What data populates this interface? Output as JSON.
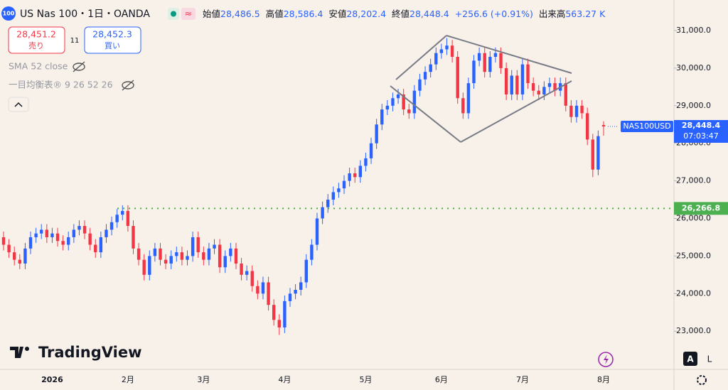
{
  "header": {
    "symbol": "US Nas 100・1日・OANDA",
    "badge": "100",
    "open_label": "始値",
    "open": "28,486.5",
    "high_label": "高値",
    "high": "28,586.4",
    "low_label": "安値",
    "low": "28,202.4",
    "close_label": "終値",
    "close": "28,448.4",
    "change": "+256.6 (+0.91%)",
    "volume_label": "出来高",
    "volume": "563.27 K",
    "sell_price": "28,451.2",
    "sell": "売り",
    "spread": "11",
    "buy_price": "28,452.3",
    "buy": "買い",
    "indicator1": "SMA 52 close",
    "indicator2": "一目均衡表® 9 26 52 26",
    "brand": "TradingView",
    "btn_a": "A",
    "btn_l": "L"
  },
  "chart_data": {
    "type": "candlestick",
    "up_color": "#2962ff",
    "down_color": "#f23645",
    "categories": [
      null,
      null,
      null,
      null,
      null,
      null,
      null,
      null,
      null,
      "2026",
      null,
      null,
      null,
      null,
      null,
      null,
      null,
      null,
      null,
      null,
      null,
      null,
      null,
      "2月",
      null,
      null,
      null,
      null,
      null,
      null,
      null,
      null,
      null,
      null,
      null,
      null,
      null,
      "3月",
      null,
      null,
      null,
      null,
      null,
      null,
      null,
      null,
      null,
      null,
      null,
      null,
      null,
      null,
      "4月",
      null,
      null,
      null,
      null,
      null,
      null,
      null,
      null,
      null,
      null,
      null,
      null,
      null,
      null,
      "5月",
      null,
      null,
      null,
      null,
      null,
      null,
      null,
      null,
      null,
      null,
      null,
      null,
      null,
      "6月",
      null,
      null,
      null,
      null,
      null,
      null,
      null,
      null,
      null,
      null,
      null,
      null,
      null,
      null,
      "7月",
      null,
      null,
      null,
      null,
      null,
      null,
      null,
      null,
      null,
      null,
      null,
      null,
      null,
      null,
      "8月"
    ],
    "open": [
      25500,
      25300,
      25100,
      24900,
      24800,
      25200,
      25500,
      25600,
      25700,
      25500,
      25600,
      25400,
      25300,
      25500,
      25700,
      25800,
      25600,
      25300,
      25100,
      25500,
      25700,
      25900,
      26100,
      26200,
      25800,
      25200,
      24900,
      24500,
      25000,
      25200,
      24900,
      24800,
      25000,
      25100,
      24900,
      25000,
      25500,
      25100,
      24900,
      25200,
      25300,
      24700,
      25000,
      25200,
      24800,
      24500,
      24600,
      24200,
      24000,
      24300,
      23700,
      23300,
      23100,
      23800,
      24000,
      24100,
      24300,
      24900,
      25300,
      26000,
      26300,
      26500,
      26700,
      26800,
      27000,
      27200,
      27100,
      27400,
      27600,
      28000,
      28500,
      28900,
      29000,
      29200,
      29300,
      28900,
      28800,
      29400,
      29700,
      29900,
      30100,
      30400,
      30500,
      30600,
      30300,
      29200,
      28800,
      29600,
      30200,
      30400,
      29900,
      30300,
      30400,
      30000,
      29300,
      29800,
      29300,
      30100,
      29600,
      29400,
      29300,
      29500,
      29600,
      29400,
      29600,
      29000,
      28700,
      29000,
      28800,
      28100,
      27300,
      28486.5
    ],
    "high": [
      25650,
      25450,
      25250,
      25050,
      25350,
      25650,
      25750,
      25850,
      25850,
      25750,
      25750,
      25550,
      25650,
      25850,
      25950,
      25950,
      25750,
      25450,
      25650,
      25850,
      26050,
      26250,
      26350,
      26350,
      25950,
      25350,
      25050,
      25150,
      25350,
      25350,
      25050,
      25150,
      25250,
      25250,
      25150,
      25650,
      25650,
      25250,
      25350,
      25450,
      25450,
      25150,
      25350,
      25350,
      24950,
      24750,
      24750,
      24350,
      24450,
      24450,
      23850,
      23450,
      23950,
      24150,
      24250,
      24450,
      25050,
      25450,
      26150,
      26450,
      26650,
      26850,
      26950,
      27150,
      27350,
      27350,
      27550,
      27750,
      28150,
      28650,
      29050,
      29150,
      29350,
      29450,
      29450,
      29050,
      29550,
      29850,
      30050,
      30250,
      30550,
      30650,
      30800,
      30750,
      30450,
      29350,
      29750,
      30350,
      30550,
      30550,
      30450,
      30550,
      30550,
      30150,
      29950,
      29950,
      30250,
      30250,
      29750,
      29550,
      29650,
      29750,
      29750,
      29750,
      29750,
      29150,
      29150,
      29150,
      28950,
      28250,
      28340,
      28586.4
    ],
    "low": [
      25150,
      24950,
      24750,
      24650,
      24650,
      25050,
      25350,
      25450,
      25350,
      25350,
      25250,
      25150,
      25150,
      25350,
      25550,
      25450,
      25150,
      24950,
      24950,
      25350,
      25550,
      25750,
      25950,
      25650,
      25050,
      24750,
      24350,
      24350,
      24850,
      24750,
      24650,
      24650,
      24850,
      24750,
      24750,
      24850,
      24950,
      24750,
      24750,
      25050,
      24550,
      24550,
      24850,
      24650,
      24350,
      24350,
      24050,
      23850,
      23850,
      23550,
      23150,
      22900,
      22950,
      23650,
      23850,
      23950,
      24150,
      24750,
      25150,
      25850,
      26150,
      26350,
      26550,
      26650,
      26850,
      26950,
      26950,
      27250,
      27450,
      27850,
      28350,
      28750,
      28850,
      29050,
      28750,
      28650,
      28650,
      29250,
      29550,
      29750,
      29950,
      30250,
      30350,
      30150,
      29050,
      28650,
      28650,
      29450,
      30050,
      29750,
      29750,
      30150,
      29850,
      29150,
      29150,
      29150,
      29150,
      29450,
      29250,
      29150,
      29150,
      29350,
      29250,
      29250,
      28850,
      28550,
      28550,
      28650,
      27950,
      27100,
      27150,
      28202.4
    ],
    "close": [
      25300,
      25100,
      24900,
      24800,
      25200,
      25500,
      25600,
      25700,
      25500,
      25600,
      25400,
      25300,
      25500,
      25700,
      25800,
      25600,
      25300,
      25100,
      25500,
      25700,
      25900,
      26100,
      26200,
      25800,
      25200,
      24900,
      24500,
      25000,
      25200,
      24900,
      24800,
      25000,
      25100,
      24900,
      25000,
      25500,
      25100,
      24900,
      25200,
      25300,
      24700,
      25000,
      25200,
      24800,
      24500,
      24600,
      24200,
      24000,
      24300,
      23700,
      23300,
      23100,
      23800,
      24000,
      24100,
      24300,
      24900,
      25300,
      26000,
      26300,
      26500,
      26700,
      26800,
      27000,
      27200,
      27100,
      27400,
      27600,
      28000,
      28500,
      28900,
      29000,
      29200,
      29300,
      28900,
      28800,
      29400,
      29700,
      29900,
      30100,
      30400,
      30500,
      30600,
      30300,
      29200,
      28800,
      29600,
      30200,
      30400,
      29900,
      30300,
      30400,
      30000,
      29300,
      29800,
      29300,
      30100,
      29600,
      29400,
      29300,
      29500,
      29600,
      29400,
      29600,
      29000,
      28700,
      29000,
      28800,
      28100,
      27300,
      28190,
      28448.4
    ],
    "ylim": [
      21983,
      31813
    ],
    "yticks": [
      {
        "value": 23000,
        "label": "23,000.0"
      },
      {
        "value": 24000,
        "label": "24,000.0"
      },
      {
        "value": 25000,
        "label": "25,000.0"
      },
      {
        "value": 26000,
        "label": "26,000.0"
      },
      {
        "value": 27000,
        "label": "27,000.0"
      },
      {
        "value": 28000,
        "label": "28,000.0"
      },
      {
        "value": 29000,
        "label": "29,000.0"
      },
      {
        "value": 30000,
        "label": "30,000.0"
      },
      {
        "value": 31000,
        "label": "31,000.0"
      }
    ],
    "hline": {
      "value": 26266.8,
      "label": "26,266.8",
      "color": "#4caf50"
    },
    "last_price": {
      "value": 28448.4,
      "label": "28,448.4",
      "symbol": "NAS100USD",
      "countdown": "07:03:47",
      "color": "#2962ff"
    },
    "grid": false
  }
}
